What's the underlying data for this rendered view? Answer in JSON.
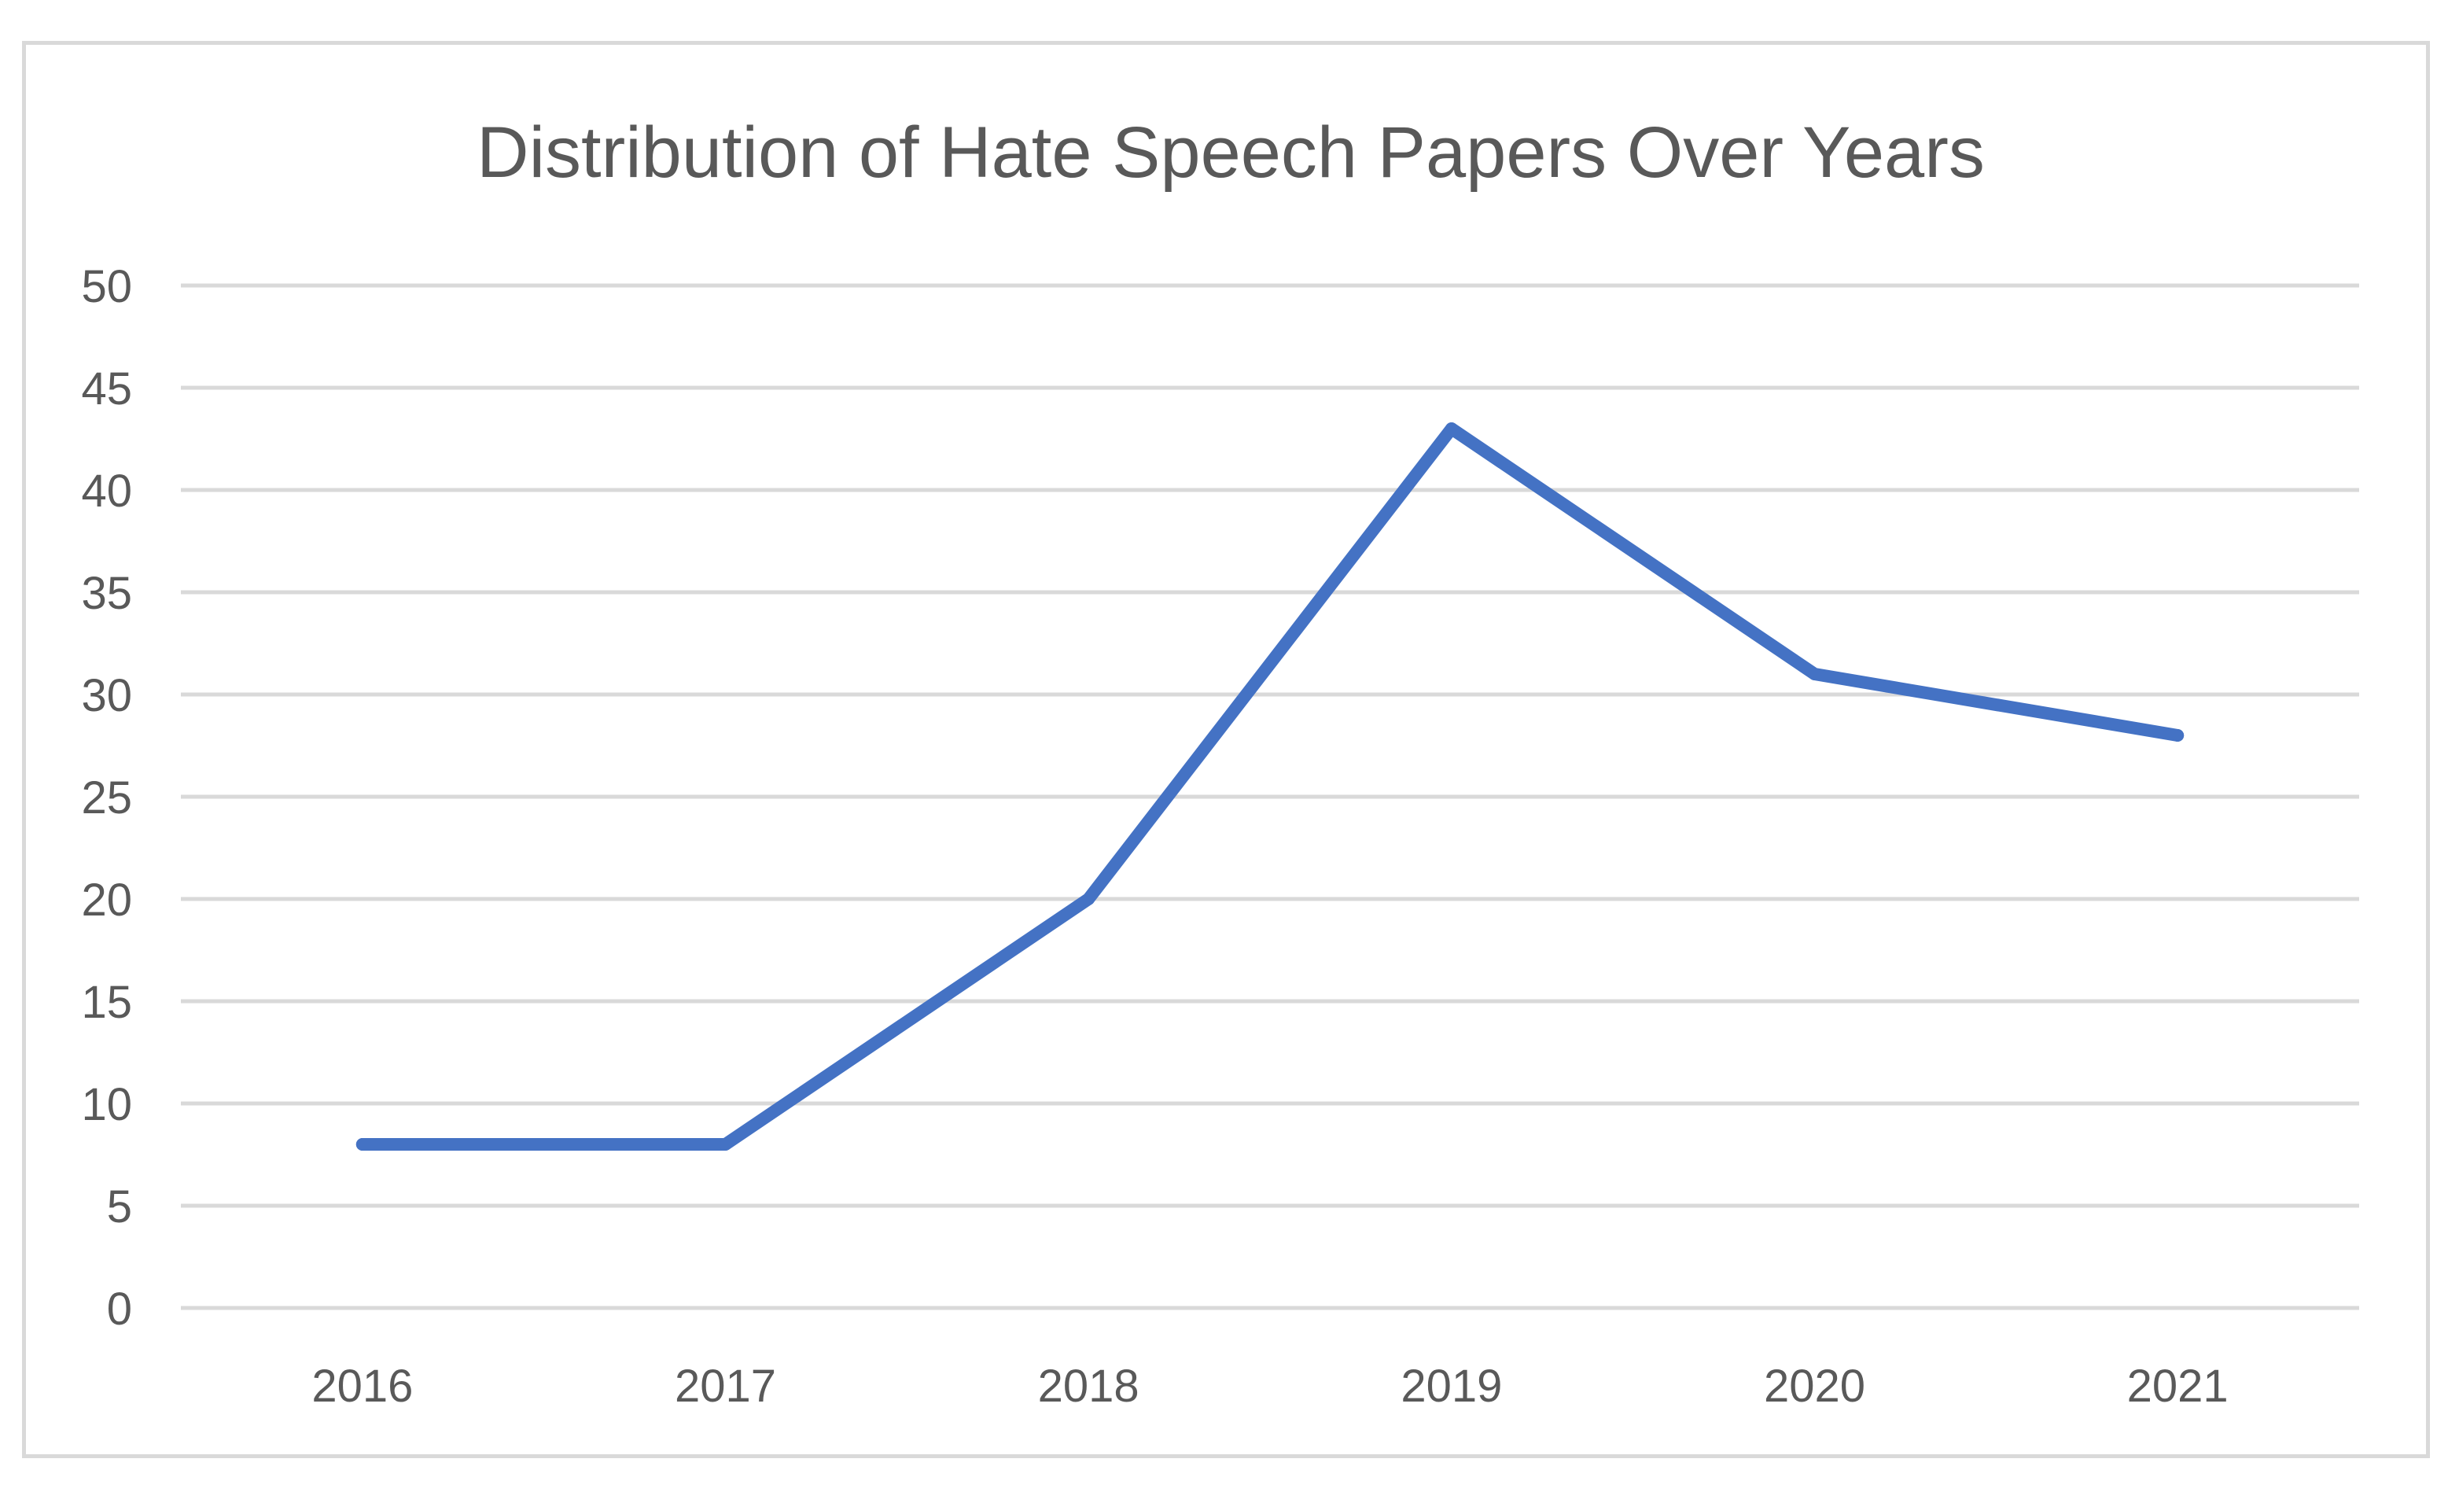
{
  "chart_data": {
    "type": "line",
    "title": "Distribution of Hate Speech Papers Over Years",
    "xlabel": "",
    "ylabel": "",
    "categories": [
      "2016",
      "2017",
      "2018",
      "2019",
      "2020",
      "2021"
    ],
    "series": [
      {
        "values": [
          8,
          8,
          20,
          43,
          31,
          28
        ]
      }
    ],
    "ylim": [
      0,
      50
    ],
    "y_ticks": [
      "0",
      "5",
      "10",
      "15",
      "20",
      "25",
      "30",
      "35",
      "40",
      "45",
      "50"
    ],
    "grid": true,
    "legend": "none",
    "colors": {
      "line": "#4472c4",
      "grid": "#d9d9d9",
      "text": "#595959",
      "border": "#d9d9d9"
    }
  }
}
